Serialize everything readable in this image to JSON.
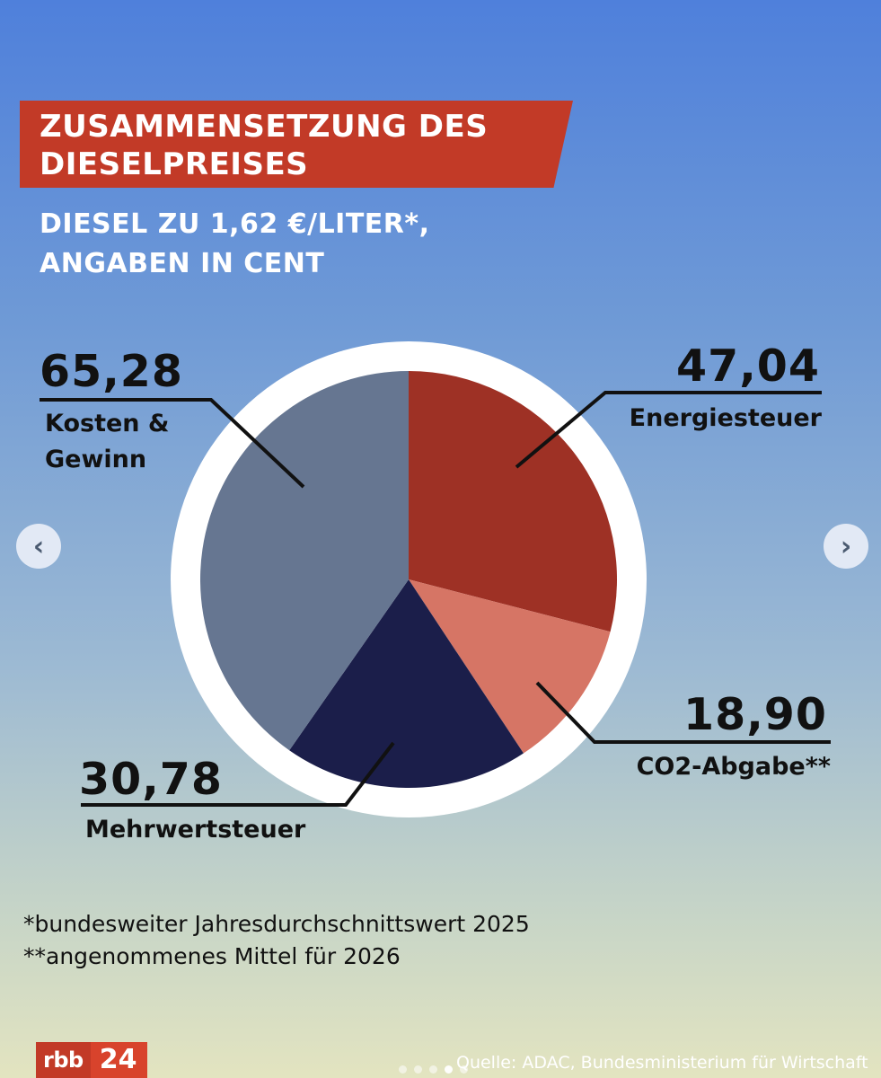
{
  "chart_data": {
    "type": "pie",
    "title": "ZUSAMMENSETZUNG DES DIESELPREISES",
    "subtitle": "DIESEL ZU 1,62 €/LITER*, ANGABEN IN CENT",
    "slices": [
      {
        "label": "Energiesteuer",
        "value": 47.04,
        "display": "47,04",
        "color": "#9e3125"
      },
      {
        "label": "CO2-Abgabe**",
        "value": 18.9,
        "display": "18,90",
        "color": "#d67565"
      },
      {
        "label": "Mehrwertsteuer",
        "value": 30.78,
        "display": "30,78",
        "color": "#1b1e4a"
      },
      {
        "label": "Kosten & Gewinn",
        "value": 65.28,
        "display": "65,28",
        "color": "#667691"
      }
    ],
    "start": "12 o'clock",
    "direction": "clockwise"
  },
  "title": {
    "line1": "ZUSAMMENSETZUNG DES",
    "line2": "DIESELPREISES"
  },
  "subtitle": {
    "line1": "DIESEL ZU 1,62 €/LITER*,",
    "line2": "ANGABEN IN CENT"
  },
  "labels": {
    "energiesteuer": {
      "value": "47,04",
      "name": "Energiesteuer"
    },
    "co2": {
      "value": "18,90",
      "name": "CO2-Abgabe**"
    },
    "mwst": {
      "value": "30,78",
      "name": "Mehrwertsteuer"
    },
    "kosten": {
      "value": "65,28",
      "name_line1": "Kosten &",
      "name_line2": "Gewinn"
    }
  },
  "footnotes": [
    "*bundesweiter Jahresdurchschnittswert 2025",
    "**angenommenes Mittel für 2026"
  ],
  "logo": {
    "part1": "rbb",
    "part2": "24"
  },
  "source": "Quelle: ADAC, Bundesministerium für Wirtschaft",
  "nav": {
    "prev_icon": "chevron-left-icon",
    "next_icon": "chevron-right-icon",
    "prev_glyph": "‹",
    "next_glyph": "›"
  },
  "carousel": {
    "count": 5,
    "active": 4
  }
}
